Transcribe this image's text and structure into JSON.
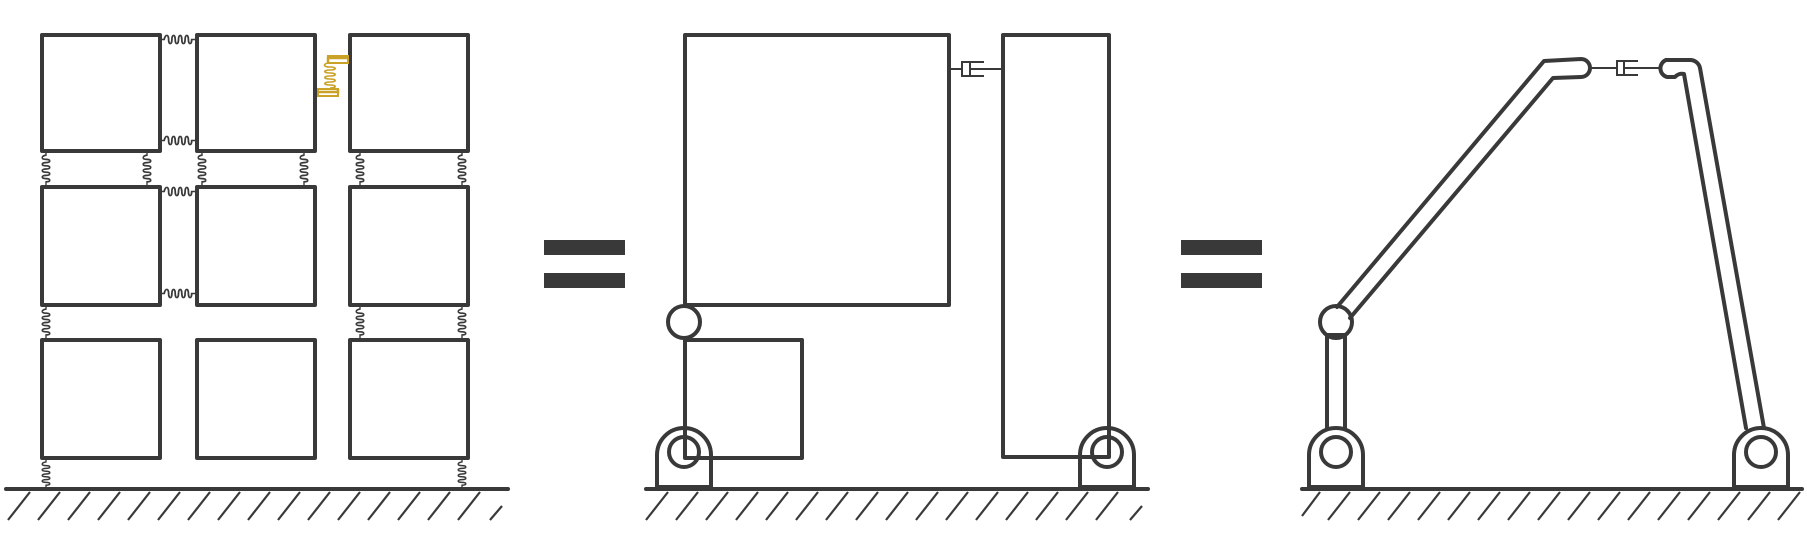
{
  "colors": {
    "line": "#3a3939",
    "accent": "#c9a227",
    "background": "#ffffff"
  },
  "panels": [
    {
      "name": "modular-grid",
      "rows": 3,
      "cols": 3
    },
    {
      "name": "two-link-mechanism"
    },
    {
      "name": "robot-arms"
    }
  ],
  "equals_signs": 2
}
